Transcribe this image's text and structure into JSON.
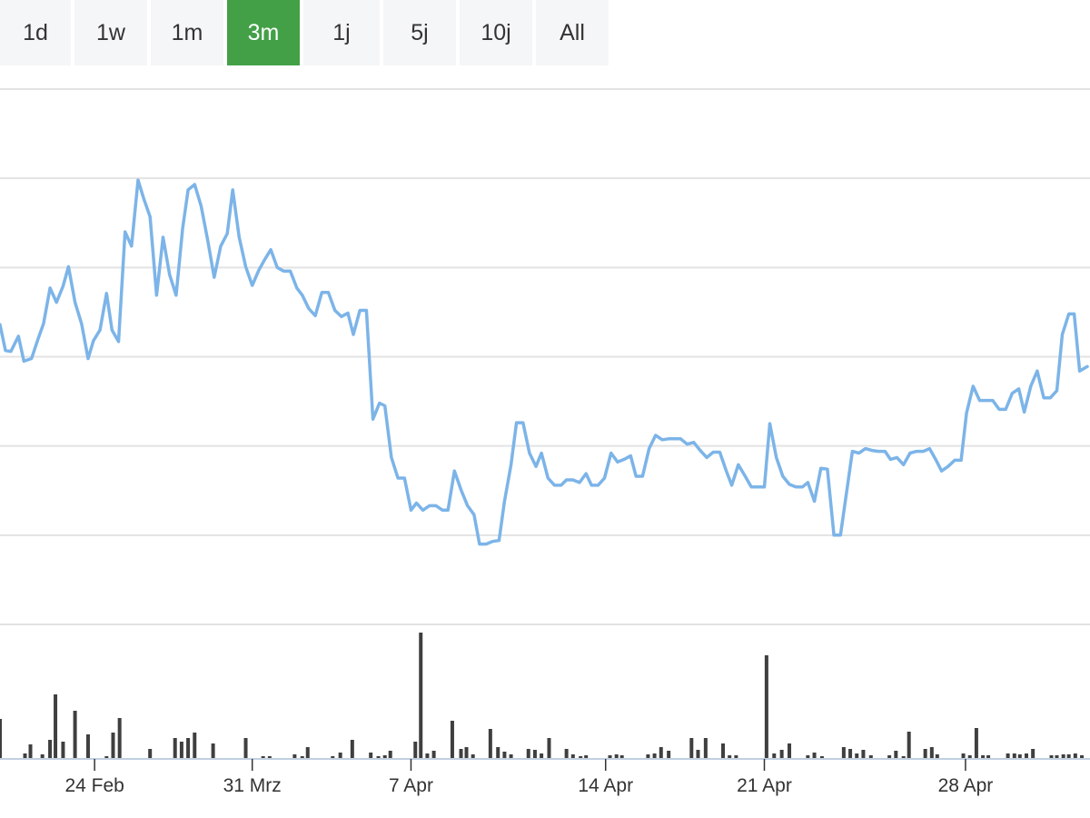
{
  "range_selector": {
    "buttons": [
      {
        "label": "1d",
        "active": false
      },
      {
        "label": "1w",
        "active": false
      },
      {
        "label": "1m",
        "active": false
      },
      {
        "label": "3m",
        "active": true
      },
      {
        "label": "1j",
        "active": false
      },
      {
        "label": "5j",
        "active": false
      },
      {
        "label": "10j",
        "active": false
      },
      {
        "label": "All",
        "active": false
      }
    ]
  },
  "colors": {
    "line": "#7cb4e8",
    "volume": "#3f3f3f",
    "active_button": "#43a047",
    "grid": "#e3e3e3",
    "axis": "#c0d0e0"
  },
  "chart_data": {
    "type": "line",
    "title": "",
    "xlabel": "",
    "ylabel": "",
    "grid": true,
    "x_range": [
      0,
      100
    ],
    "x_tick_labels": [
      {
        "label": "24 Feb",
        "x": 8.7
      },
      {
        "label": "31 Mrz",
        "x": 23.2
      },
      {
        "label": "7 Apr",
        "x": 37.8
      },
      {
        "label": "14 Apr",
        "x": 55.7
      },
      {
        "label": "21 Apr",
        "x": 70.3
      },
      {
        "label": "28 Apr",
        "x": 88.8
      }
    ],
    "price_series": {
      "name": "",
      "ylim": [
        0,
        6
      ],
      "points": [
        [
          0,
          3.36
        ],
        [
          0.5,
          3.07
        ],
        [
          1.0,
          3.06
        ],
        [
          1.7,
          3.23
        ],
        [
          2.2,
          2.95
        ],
        [
          2.9,
          2.98
        ],
        [
          3.5,
          3.2
        ],
        [
          4.0,
          3.37
        ],
        [
          4.6,
          3.77
        ],
        [
          5.2,
          3.61
        ],
        [
          5.8,
          3.79
        ],
        [
          6.3,
          4.01
        ],
        [
          6.9,
          3.61
        ],
        [
          7.5,
          3.37
        ],
        [
          8.1,
          2.98
        ],
        [
          8.6,
          3.18
        ],
        [
          9.2,
          3.3
        ],
        [
          9.8,
          3.71
        ],
        [
          10.3,
          3.3
        ],
        [
          10.9,
          3.17
        ],
        [
          11.5,
          4.4
        ],
        [
          12.1,
          4.24
        ],
        [
          12.7,
          4.98
        ],
        [
          13.2,
          4.78
        ],
        [
          13.8,
          4.57
        ],
        [
          14.4,
          3.69
        ],
        [
          15.0,
          4.34
        ],
        [
          15.6,
          3.92
        ],
        [
          16.2,
          3.69
        ],
        [
          16.8,
          4.44
        ],
        [
          17.3,
          4.87
        ],
        [
          17.9,
          4.93
        ],
        [
          18.5,
          4.69
        ],
        [
          19.1,
          4.31
        ],
        [
          19.7,
          3.89
        ],
        [
          20.3,
          4.24
        ],
        [
          20.9,
          4.38
        ],
        [
          21.4,
          4.87
        ],
        [
          22.0,
          4.34
        ],
        [
          22.6,
          4.01
        ],
        [
          23.2,
          3.8
        ],
        [
          23.8,
          3.97
        ],
        [
          24.3,
          4.08
        ],
        [
          24.9,
          4.2
        ],
        [
          25.5,
          4.0
        ],
        [
          26.1,
          3.96
        ],
        [
          26.7,
          3.96
        ],
        [
          27.3,
          3.77
        ],
        [
          27.8,
          3.69
        ],
        [
          28.4,
          3.54
        ],
        [
          29.0,
          3.46
        ],
        [
          29.6,
          3.72
        ],
        [
          30.2,
          3.72
        ],
        [
          30.8,
          3.52
        ],
        [
          31.4,
          3.45
        ],
        [
          32.0,
          3.49
        ],
        [
          32.5,
          3.25
        ],
        [
          33.1,
          3.52
        ],
        [
          33.7,
          3.52
        ],
        [
          34.3,
          2.3
        ],
        [
          34.9,
          2.48
        ],
        [
          35.4,
          2.45
        ],
        [
          36.0,
          1.87
        ],
        [
          36.6,
          1.64
        ],
        [
          37.2,
          1.64
        ],
        [
          37.8,
          1.28
        ],
        [
          38.3,
          1.36
        ],
        [
          38.9,
          1.28
        ],
        [
          39.5,
          1.33
        ],
        [
          40.1,
          1.33
        ],
        [
          40.7,
          1.28
        ],
        [
          41.2,
          1.28
        ],
        [
          41.8,
          1.72
        ],
        [
          42.4,
          1.51
        ],
        [
          43.0,
          1.33
        ],
        [
          43.6,
          1.23
        ],
        [
          44.1,
          0.9
        ],
        [
          44.7,
          0.9
        ],
        [
          45.3,
          0.93
        ],
        [
          45.9,
          0.94
        ],
        [
          46.4,
          1.38
        ],
        [
          47.0,
          1.79
        ],
        [
          47.5,
          2.26
        ],
        [
          48.1,
          2.26
        ],
        [
          48.7,
          1.92
        ],
        [
          49.3,
          1.77
        ],
        [
          49.8,
          1.92
        ],
        [
          50.4,
          1.64
        ],
        [
          51.0,
          1.56
        ],
        [
          51.6,
          1.56
        ],
        [
          52.1,
          1.62
        ],
        [
          52.7,
          1.62
        ],
        [
          53.3,
          1.59
        ],
        [
          53.9,
          1.69
        ],
        [
          54.4,
          1.56
        ],
        [
          55.0,
          1.56
        ],
        [
          55.6,
          1.64
        ],
        [
          56.2,
          1.92
        ],
        [
          56.8,
          1.82
        ],
        [
          57.4,
          1.85
        ],
        [
          58.0,
          1.89
        ],
        [
          58.5,
          1.66
        ],
        [
          59.1,
          1.66
        ],
        [
          59.7,
          1.97
        ],
        [
          60.3,
          2.12
        ],
        [
          60.9,
          2.07
        ],
        [
          61.5,
          2.08
        ],
        [
          62.0,
          2.08
        ],
        [
          62.6,
          2.08
        ],
        [
          63.2,
          2.02
        ],
        [
          63.8,
          2.04
        ],
        [
          64.4,
          1.95
        ],
        [
          65.0,
          1.87
        ],
        [
          65.6,
          1.93
        ],
        [
          66.2,
          1.93
        ],
        [
          66.8,
          1.72
        ],
        [
          67.3,
          1.56
        ],
        [
          67.9,
          1.79
        ],
        [
          68.5,
          1.67
        ],
        [
          69.1,
          1.54
        ],
        [
          69.7,
          1.54
        ],
        [
          70.3,
          1.54
        ],
        [
          70.8,
          2.25
        ],
        [
          71.4,
          1.87
        ],
        [
          72.0,
          1.66
        ],
        [
          72.6,
          1.57
        ],
        [
          73.2,
          1.54
        ],
        [
          73.8,
          1.54
        ],
        [
          74.3,
          1.59
        ],
        [
          74.9,
          1.38
        ],
        [
          75.5,
          1.75
        ],
        [
          76.1,
          1.74
        ],
        [
          76.7,
          1.0
        ],
        [
          77.3,
          1.0
        ],
        [
          77.8,
          1.43
        ],
        [
          78.4,
          1.94
        ],
        [
          79.0,
          1.92
        ],
        [
          79.6,
          1.97
        ],
        [
          80.2,
          1.95
        ],
        [
          80.8,
          1.94
        ],
        [
          81.4,
          1.94
        ],
        [
          81.9,
          1.85
        ],
        [
          82.5,
          1.87
        ],
        [
          83.1,
          1.79
        ],
        [
          83.7,
          1.92
        ],
        [
          84.3,
          1.94
        ],
        [
          84.9,
          1.94
        ],
        [
          85.5,
          1.97
        ],
        [
          86.1,
          1.84
        ],
        [
          86.6,
          1.72
        ],
        [
          87.2,
          1.77
        ],
        [
          87.8,
          1.84
        ],
        [
          88.4,
          1.84
        ],
        [
          88.9,
          2.37
        ],
        [
          89.5,
          2.67
        ],
        [
          90.1,
          2.51
        ],
        [
          90.7,
          2.51
        ],
        [
          91.3,
          2.51
        ],
        [
          91.9,
          2.41
        ],
        [
          92.5,
          2.41
        ],
        [
          93.1,
          2.59
        ],
        [
          93.7,
          2.64
        ],
        [
          94.2,
          2.38
        ],
        [
          94.8,
          2.67
        ],
        [
          95.4,
          2.84
        ],
        [
          96.0,
          2.54
        ],
        [
          96.6,
          2.54
        ],
        [
          97.2,
          2.62
        ],
        [
          97.7,
          3.25
        ],
        [
          98.3,
          3.48
        ],
        [
          98.8,
          3.48
        ],
        [
          99.3,
          2.84
        ],
        [
          100,
          2.89
        ]
      ]
    },
    "volume_series": {
      "name": "",
      "ylim": [
        0,
        140
      ],
      "bars": [
        [
          0,
          43
        ],
        [
          2.3,
          5
        ],
        [
          2.8,
          15
        ],
        [
          3.9,
          4
        ],
        [
          4.6,
          20
        ],
        [
          5.1,
          70
        ],
        [
          5.8,
          18
        ],
        [
          6.9,
          52
        ],
        [
          8.1,
          26
        ],
        [
          9.8,
          2
        ],
        [
          10.4,
          28
        ],
        [
          11.0,
          44
        ],
        [
          13.8,
          10
        ],
        [
          16.1,
          22
        ],
        [
          16.7,
          18
        ],
        [
          17.3,
          22
        ],
        [
          17.9,
          28
        ],
        [
          19.6,
          16
        ],
        [
          22.6,
          22
        ],
        [
          24.2,
          2
        ],
        [
          24.8,
          2
        ],
        [
          27.1,
          4
        ],
        [
          27.8,
          2
        ],
        [
          28.3,
          12
        ],
        [
          30.6,
          2
        ],
        [
          31.3,
          6
        ],
        [
          32.4,
          20
        ],
        [
          34.1,
          6
        ],
        [
          34.8,
          2
        ],
        [
          35.4,
          3
        ],
        [
          35.9,
          8
        ],
        [
          38.2,
          18
        ],
        [
          38.7,
          138
        ],
        [
          39.3,
          5
        ],
        [
          39.9,
          8
        ],
        [
          41.6,
          41
        ],
        [
          42.4,
          10
        ],
        [
          42.9,
          12
        ],
        [
          43.5,
          4
        ],
        [
          45.1,
          32
        ],
        [
          45.8,
          12
        ],
        [
          46.4,
          7
        ],
        [
          47.0,
          4
        ],
        [
          48.6,
          10
        ],
        [
          49.2,
          9
        ],
        [
          49.8,
          5
        ],
        [
          50.5,
          22
        ],
        [
          52.1,
          10
        ],
        [
          52.7,
          4
        ],
        [
          53.4,
          2
        ],
        [
          53.9,
          3
        ],
        [
          56.1,
          3
        ],
        [
          56.7,
          4
        ],
        [
          57.2,
          3
        ],
        [
          59.6,
          4
        ],
        [
          60.2,
          5
        ],
        [
          60.8,
          12
        ],
        [
          61.5,
          8
        ],
        [
          63.6,
          22
        ],
        [
          64.2,
          9
        ],
        [
          64.9,
          22
        ],
        [
          66.5,
          16
        ],
        [
          67.1,
          3
        ],
        [
          67.7,
          3
        ],
        [
          70.5,
          113
        ],
        [
          71.2,
          5
        ],
        [
          71.9,
          9
        ],
        [
          72.6,
          16
        ],
        [
          74.3,
          3
        ],
        [
          74.9,
          6
        ],
        [
          75.6,
          2
        ],
        [
          77.6,
          12
        ],
        [
          78.2,
          10
        ],
        [
          78.8,
          5
        ],
        [
          79.4,
          9
        ],
        [
          80.1,
          3
        ],
        [
          81.8,
          3
        ],
        [
          82.4,
          8
        ],
        [
          83.1,
          2
        ],
        [
          83.6,
          29
        ],
        [
          85.1,
          10
        ],
        [
          85.7,
          12
        ],
        [
          86.2,
          4
        ],
        [
          88.6,
          5
        ],
        [
          89.2,
          3
        ],
        [
          89.8,
          33
        ],
        [
          90.4,
          3
        ],
        [
          90.9,
          3
        ],
        [
          92.7,
          5
        ],
        [
          93.3,
          5
        ],
        [
          93.8,
          4
        ],
        [
          94.4,
          5
        ],
        [
          95.0,
          10
        ],
        [
          96.7,
          3
        ],
        [
          97.2,
          3
        ],
        [
          97.8,
          4
        ],
        [
          98.3,
          4
        ],
        [
          98.9,
          5
        ],
        [
          99.5,
          3
        ]
      ]
    }
  }
}
